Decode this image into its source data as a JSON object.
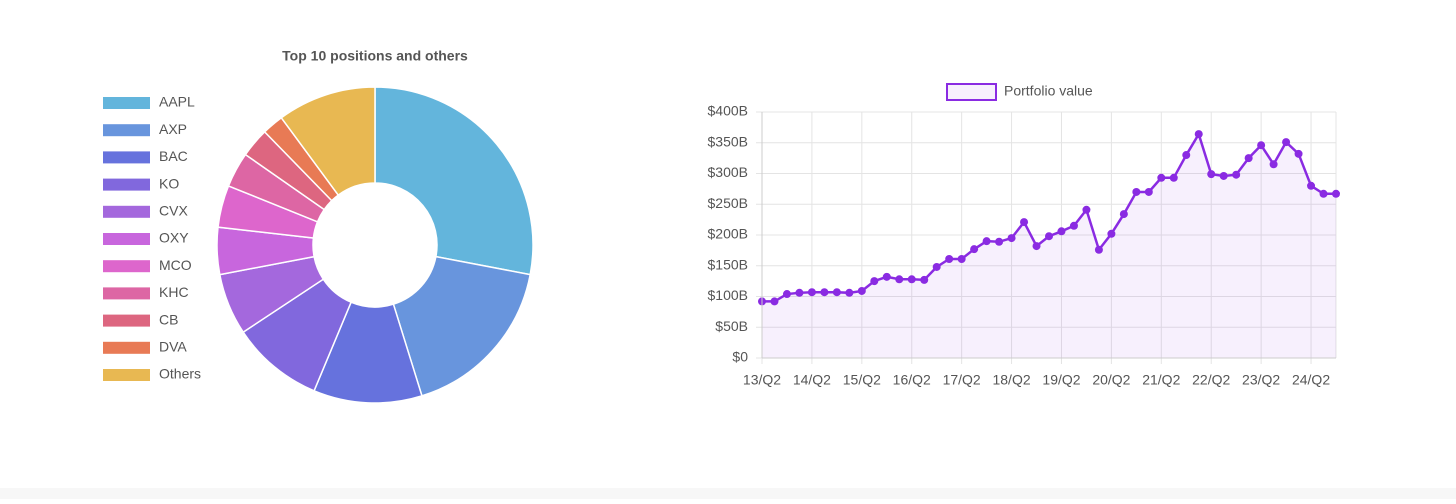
{
  "chart_data": [
    {
      "type": "doughnut",
      "title": "Top 10 positions and others",
      "categories": [
        "AAPL",
        "AXP",
        "BAC",
        "KO",
        "CVX",
        "OXY",
        "MCO",
        "KHC",
        "CB",
        "DVA",
        "Others"
      ],
      "values": [
        28,
        17.2,
        11.1,
        9.4,
        6.3,
        4.8,
        4.3,
        3.6,
        3.0,
        2.2,
        10.1
      ],
      "colors": [
        "#63b5dc",
        "#6895dd",
        "#6672dd",
        "#8168dd",
        "#a468dd",
        "#c866dd",
        "#dd66cc",
        "#dd66a4",
        "#dd6680",
        "#e87a55",
        "#e8b852"
      ],
      "legend": "left"
    },
    {
      "type": "line",
      "categories": [
        "13/Q2",
        null,
        null,
        null,
        "14/Q2",
        null,
        null,
        null,
        "15/Q2",
        null,
        null,
        null,
        "16/Q2",
        null,
        null,
        null,
        "17/Q2",
        null,
        null,
        null,
        "18/Q2",
        null,
        null,
        null,
        "19/Q2",
        null,
        null,
        null,
        "20/Q2",
        null,
        null,
        null,
        "21/Q2",
        null,
        null,
        null,
        "22/Q2",
        null,
        null,
        null,
        "23/Q2",
        null,
        null,
        null,
        "24/Q2",
        null,
        null
      ],
      "series": [
        {
          "name": "Portfolio value",
          "color": "#8a2be2",
          "values": [
            92,
            92,
            104,
            106,
            107,
            107,
            107,
            106,
            109,
            125,
            132,
            128,
            128,
            127,
            148,
            161,
            161,
            177,
            190,
            189,
            195,
            221,
            182,
            198,
            206,
            215,
            241,
            176,
            202,
            234,
            270,
            270,
            293,
            293,
            330,
            364,
            299,
            296,
            298,
            325,
            346,
            315,
            351,
            332,
            280,
            267,
            267
          ]
        }
      ],
      "ylim": [
        0,
        400
      ],
      "yticks": [
        {
          "value": 0,
          "label": "$0"
        },
        {
          "value": 50,
          "label": "$50B"
        },
        {
          "value": 100,
          "label": "$100B"
        },
        {
          "value": 150,
          "label": "$150B"
        },
        {
          "value": 200,
          "label": "$200B"
        },
        {
          "value": 250,
          "label": "$250B"
        },
        {
          "value": 300,
          "label": "$300B"
        },
        {
          "value": 350,
          "label": "$350B"
        },
        {
          "value": 400,
          "label": "$400B"
        }
      ],
      "grid": true,
      "legend": "top"
    }
  ]
}
